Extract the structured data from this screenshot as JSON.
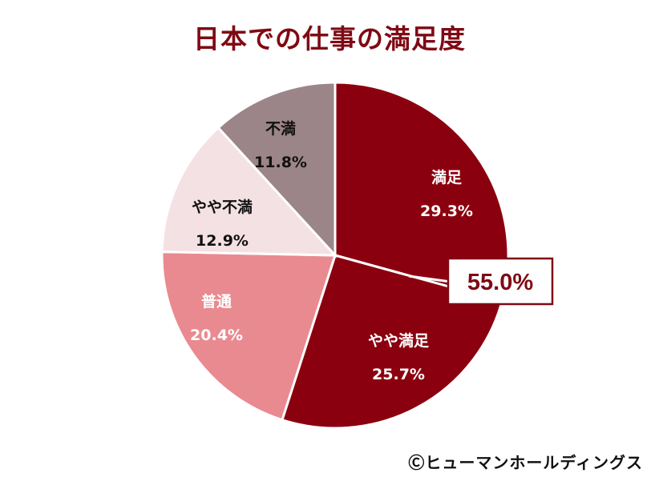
{
  "title": "日本での仕事の満足度",
  "credit": "Ⓒヒューマンホールディングス",
  "callout": {
    "label": "55.0%",
    "color": "#7f0a14"
  },
  "chart_data": {
    "type": "pie",
    "title": "日本での仕事の満足度",
    "start_angle_deg": 0,
    "direction": "clockwise",
    "categories": [
      "満足",
      "やや満足",
      "普通",
      "やや不満",
      "不満"
    ],
    "values": [
      29.3,
      25.7,
      20.4,
      12.9,
      11.8
    ],
    "labels": [
      "29.3%",
      "25.7%",
      "20.4%",
      "12.9%",
      "11.8%"
    ],
    "colors": [
      "#8b000f",
      "#8b000f",
      "#e98a90",
      "#f4e1e4",
      "#9c8588"
    ],
    "label_colors": [
      "#ffffff",
      "#ffffff",
      "#ffffff",
      "#111111",
      "#111111"
    ],
    "annotations": [
      {
        "text": "55.0%",
        "note": "満足 + やや満足"
      }
    ],
    "legend": "none"
  }
}
